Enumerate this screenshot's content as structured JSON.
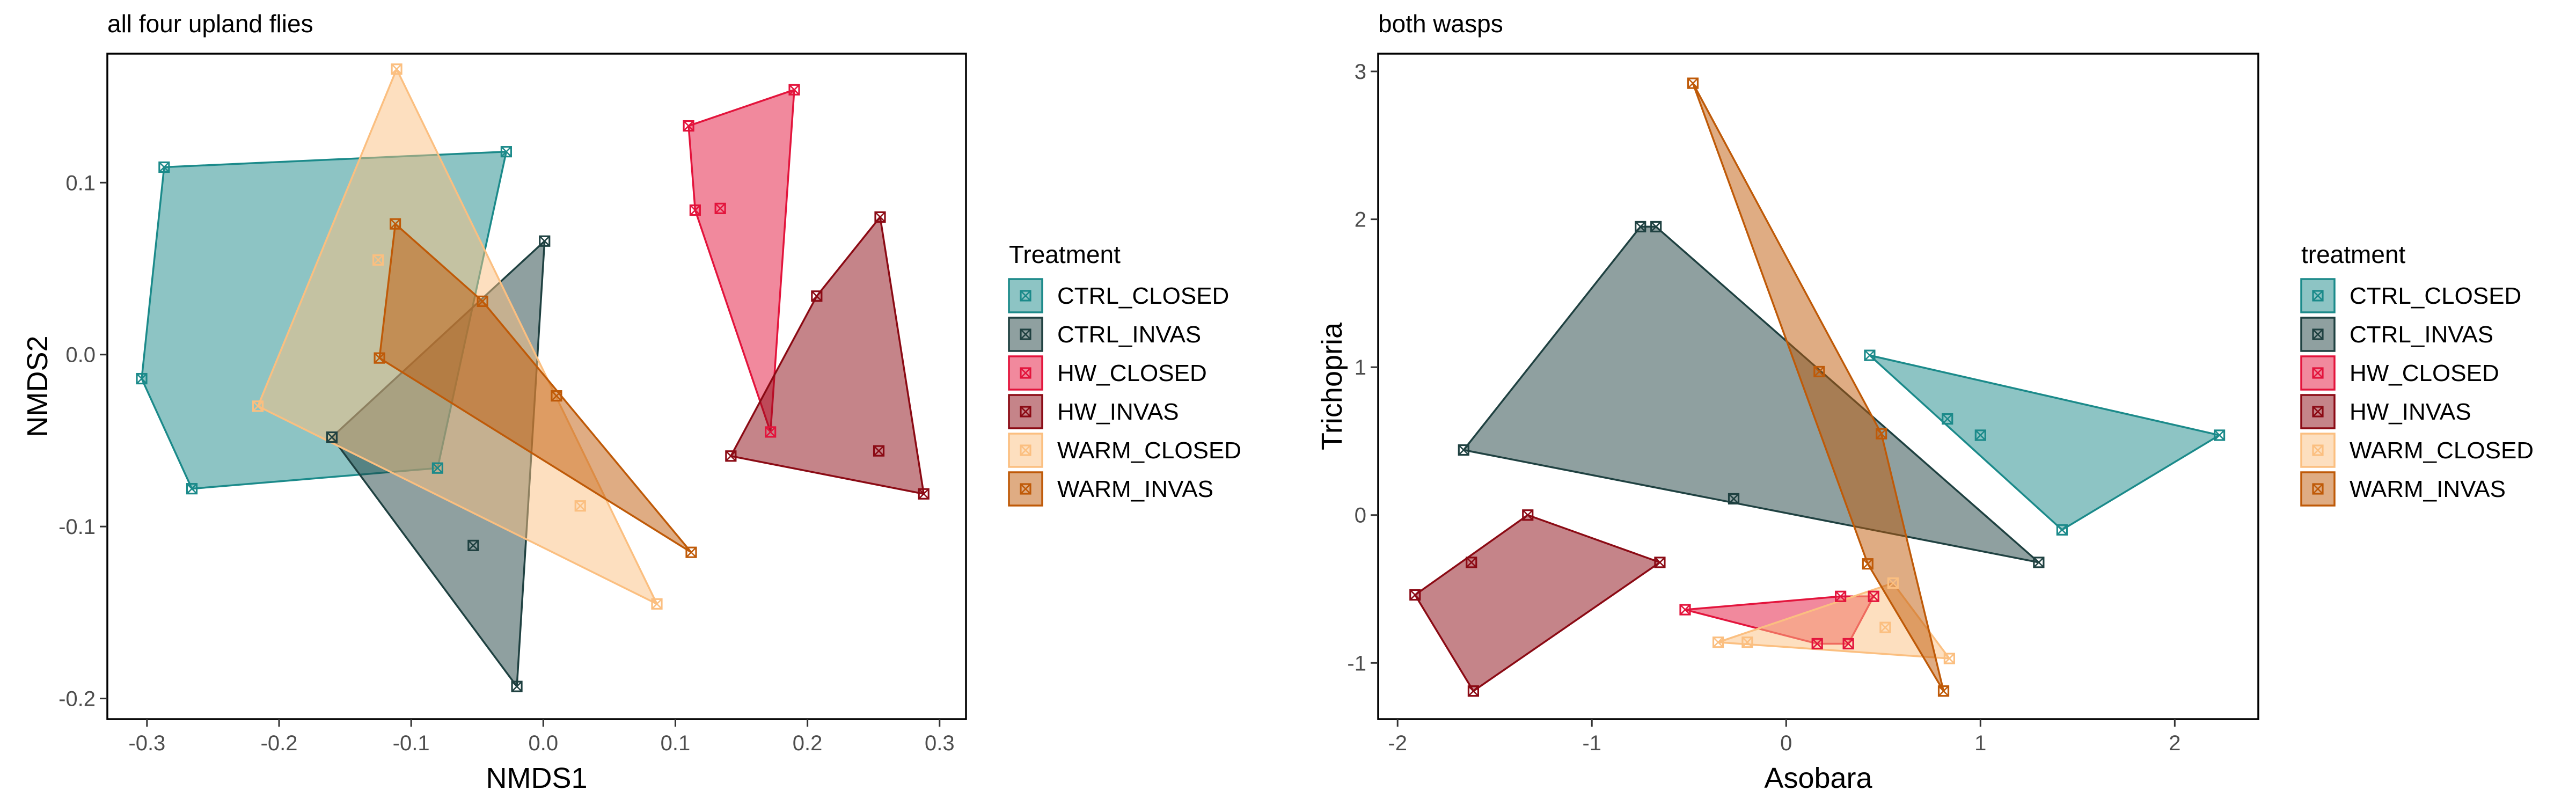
{
  "chart_data": [
    {
      "type": "scatter",
      "title": "all four upland flies",
      "xlabel": "NMDS1",
      "ylabel": "NMDS2",
      "xlim": [
        -0.33,
        0.32
      ],
      "ylim": [
        -0.212,
        0.175
      ],
      "xticks": [
        -0.3,
        -0.2,
        -0.1,
        0.0,
        0.1,
        0.2,
        0.3
      ],
      "xtick_labels": [
        "-0.3",
        "-0.2",
        "-0.1",
        "0.0",
        "0.1",
        "0.2",
        "0.3"
      ],
      "yticks": [
        -0.2,
        -0.1,
        0.0,
        0.1
      ],
      "ytick_labels": [
        "-0.2",
        "-0.1",
        "0.0",
        "0.1"
      ],
      "grid": false,
      "legend": {
        "title": "Treatment",
        "position": "right",
        "entries": [
          "CTRL_CLOSED",
          "CTRL_INVAS",
          "HW_CLOSED",
          "HW_INVAS",
          "WARM_CLOSED",
          "WARM_INVAS"
        ]
      },
      "series": [
        {
          "name": "CTRL_CLOSED",
          "color": "#1B8A8A",
          "points": [
            [
              -0.304,
              -0.014
            ],
            [
              -0.287,
              0.109
            ],
            [
              -0.028,
              0.118
            ],
            [
              -0.08,
              -0.066
            ],
            [
              -0.266,
              -0.078
            ]
          ]
        },
        {
          "name": "CTRL_INVAS",
          "color": "#1F4141",
          "points": [
            [
              0.001,
              0.066
            ],
            [
              -0.02,
              -0.193
            ],
            [
              -0.16,
              -0.048
            ],
            [
              -0.053,
              -0.111
            ]
          ]
        },
        {
          "name": "HW_CLOSED",
          "color": "#E3143C",
          "points": [
            [
              0.11,
              0.133
            ],
            [
              0.19,
              0.154
            ],
            [
              0.172,
              -0.045
            ],
            [
              0.115,
              0.084
            ],
            [
              0.134,
              0.085
            ]
          ]
        },
        {
          "name": "HW_INVAS",
          "color": "#8B0A14",
          "points": [
            [
              0.255,
              0.08
            ],
            [
              0.288,
              -0.081
            ],
            [
              0.142,
              -0.059
            ],
            [
              0.207,
              0.034
            ],
            [
              0.254,
              -0.056
            ]
          ]
        },
        {
          "name": "WARM_CLOSED",
          "color": "#FBBF80",
          "points": [
            [
              -0.111,
              0.166
            ],
            [
              0.086,
              -0.145
            ],
            [
              -0.216,
              -0.03
            ],
            [
              -0.125,
              0.055
            ],
            [
              0.028,
              -0.088
            ]
          ]
        },
        {
          "name": "WARM_INVAS",
          "color": "#BF5A08",
          "points": [
            [
              -0.112,
              0.076
            ],
            [
              0.112,
              -0.115
            ],
            [
              -0.124,
              -0.002
            ],
            [
              0.01,
              -0.024
            ],
            [
              -0.046,
              0.031
            ]
          ]
        }
      ]
    },
    {
      "type": "scatter",
      "title": "both wasps",
      "xlabel": "Asobara",
      "ylabel": "Trichopria",
      "xlim": [
        -2.1,
        2.43
      ],
      "ylim": [
        -1.38,
        3.12
      ],
      "xticks": [
        -2,
        -1,
        0,
        1,
        2
      ],
      "xtick_labels": [
        "-2",
        "-1",
        "0",
        "1",
        "2"
      ],
      "yticks": [
        -1,
        0,
        1,
        2,
        3
      ],
      "ytick_labels": [
        "-1",
        "0",
        "1",
        "2",
        "3"
      ],
      "grid": false,
      "legend": {
        "title": "treatment",
        "position": "right",
        "entries": [
          "CTRL_CLOSED",
          "CTRL_INVAS",
          "HW_CLOSED",
          "HW_INVAS",
          "WARM_CLOSED",
          "WARM_INVAS"
        ]
      },
      "series": [
        {
          "name": "CTRL_CLOSED",
          "color": "#1B8A8A",
          "points": [
            [
              0.43,
              1.08
            ],
            [
              2.23,
              0.54
            ],
            [
              1.42,
              -0.1
            ],
            [
              0.83,
              0.65
            ],
            [
              1.0,
              0.54
            ]
          ]
        },
        {
          "name": "CTRL_INVAS",
          "color": "#1F4141",
          "points": [
            [
              -0.75,
              1.95
            ],
            [
              -0.67,
              1.95
            ],
            [
              1.3,
              -0.32
            ],
            [
              -1.66,
              0.44
            ],
            [
              -0.27,
              0.11
            ]
          ]
        },
        {
          "name": "HW_CLOSED",
          "color": "#E3143C",
          "points": [
            [
              -0.52,
              -0.64
            ],
            [
              0.28,
              -0.55
            ],
            [
              0.45,
              -0.55
            ],
            [
              0.16,
              -0.87
            ],
            [
              0.32,
              -0.87
            ]
          ]
        },
        {
          "name": "HW_INVAS",
          "color": "#8B0A14",
          "points": [
            [
              -1.33,
              0.0
            ],
            [
              -0.65,
              -0.32
            ],
            [
              -1.61,
              -1.19
            ],
            [
              -1.91,
              -0.54
            ],
            [
              -1.62,
              -0.32
            ]
          ]
        },
        {
          "name": "WARM_CLOSED",
          "color": "#FBBF80",
          "points": [
            [
              0.55,
              -0.46
            ],
            [
              0.84,
              -0.97
            ],
            [
              -0.35,
              -0.86
            ],
            [
              -0.2,
              -0.86
            ],
            [
              0.51,
              -0.76
            ]
          ]
        },
        {
          "name": "WARM_INVAS",
          "color": "#BF5A08",
          "points": [
            [
              -0.48,
              2.92
            ],
            [
              0.81,
              -1.19
            ],
            [
              0.42,
              -0.33
            ],
            [
              0.49,
              0.55
            ],
            [
              0.17,
              0.97
            ]
          ]
        }
      ]
    }
  ]
}
